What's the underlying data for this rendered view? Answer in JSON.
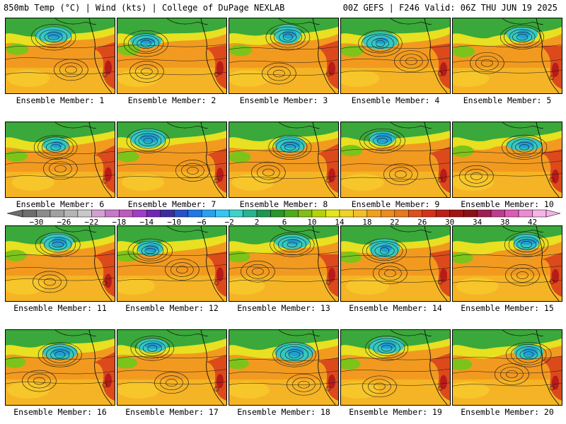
{
  "header": {
    "left": "850mb Temp (°C) | Wind (kts) | College of DuPage NEXLAB",
    "right": "00Z GEFS | F246 Valid: 06Z THU JUN 19 2025"
  },
  "colorbar": {
    "labels": [
      "−30",
      "−26",
      "−22",
      "−18",
      "−14",
      "−10",
      "−6",
      "−2",
      "2",
      "6",
      "10",
      "14",
      "18",
      "22",
      "26",
      "30",
      "34",
      "38",
      "42"
    ],
    "colors": [
      "#6e6e6e",
      "#8c8c8c",
      "#a0a0a0",
      "#b4b4b4",
      "#c8c8c8",
      "#d2a0d2",
      "#c878c8",
      "#be5abe",
      "#a03cc8",
      "#7028b4",
      "#3c2ca0",
      "#2850c8",
      "#1e78e6",
      "#28a0f0",
      "#32c8f0",
      "#3cd2c8",
      "#28b48c",
      "#1e9650",
      "#289628",
      "#50aa1e",
      "#82be14",
      "#b4d20a",
      "#e6e61e",
      "#f0d228",
      "#f5be28",
      "#f0a01e",
      "#eb8c1e",
      "#e6781e",
      "#dc501e",
      "#d23219",
      "#be1e19",
      "#a01414",
      "#8c0f14",
      "#a01e50",
      "#be3c8c",
      "#dc5ab4",
      "#eb8cd2",
      "#f5b4e6"
    ]
  },
  "panels": [
    {
      "label": "Ensemble Member: 1"
    },
    {
      "label": "Ensemble Member: 2"
    },
    {
      "label": "Ensemble Member: 3"
    },
    {
      "label": "Ensemble Member: 4"
    },
    {
      "label": "Ensemble Member: 5"
    },
    {
      "label": "Ensemble Member: 6"
    },
    {
      "label": "Ensemble Member: 7"
    },
    {
      "label": "Ensemble Member: 8"
    },
    {
      "label": "Ensemble Member: 9"
    },
    {
      "label": "Ensemble Member: 10"
    },
    {
      "label": "Ensemble Member: 11"
    },
    {
      "label": "Ensemble Member: 12"
    },
    {
      "label": "Ensemble Member: 13"
    },
    {
      "label": "Ensemble Member: 14"
    },
    {
      "label": "Ensemble Member: 15"
    },
    {
      "label": "Ensemble Member: 16"
    },
    {
      "label": "Ensemble Member: 17"
    },
    {
      "label": "Ensemble Member: 18"
    },
    {
      "label": "Ensemble Member: 19"
    },
    {
      "label": "Ensemble Member: 20"
    }
  ]
}
